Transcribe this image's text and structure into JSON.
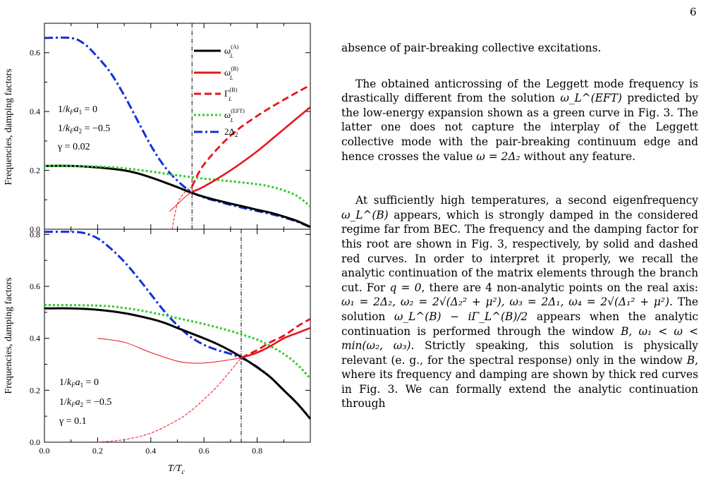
{
  "page": {
    "number": "6"
  },
  "chart_data": [
    {
      "type": "line",
      "panel": "top",
      "xlabel": "",
      "ylabel": "Frequencies, damping factors",
      "xlim": [
        0,
        1.0
      ],
      "ylim": [
        0,
        0.7
      ],
      "yticks": [
        "0.0",
        "0.2",
        "0.4",
        "0.6"
      ],
      "yticks_values": [
        0,
        0.2,
        0.4,
        0.6
      ],
      "vline_x": 0.555,
      "params": [
        "1/kFa1 = 0",
        "1/kFa2 = −0.5",
        "γ = 0.02"
      ],
      "legend": {
        "position": "top-right",
        "entries": [
          {
            "label": "ω_L^(A)",
            "color": "#000000",
            "style": "solid"
          },
          {
            "label": "ω_L^(B)",
            "color": "#e8141c",
            "style": "solid"
          },
          {
            "label": "Γ_L^(B)",
            "color": "#e8141c",
            "style": "dashed"
          },
          {
            "label": "ω_L^(EFT)",
            "color": "#2ecc2e",
            "style": "dotted"
          },
          {
            "label": "2Δ2",
            "color": "#1030d8",
            "style": "dashdot"
          }
        ]
      },
      "series": [
        {
          "name": "2Δ2",
          "color": "#1030d8",
          "dash": "dashdot",
          "width": 3,
          "x": [
            0,
            0.1,
            0.15,
            0.2,
            0.25,
            0.3,
            0.35,
            0.4,
            0.45,
            0.5,
            0.55,
            0.6,
            0.65,
            0.7,
            0.75,
            0.8,
            0.85,
            0.9,
            0.95,
            1.0
          ],
          "y": [
            0.65,
            0.65,
            0.63,
            0.585,
            0.53,
            0.455,
            0.37,
            0.285,
            0.215,
            0.165,
            0.128,
            0.108,
            0.095,
            0.083,
            0.072,
            0.062,
            0.052,
            0.04,
            0.026,
            0.007
          ]
        },
        {
          "name": "ω_L^(A)",
          "color": "#000000",
          "dash": "solid",
          "width": 3,
          "x": [
            0,
            0.1,
            0.2,
            0.3,
            0.35,
            0.4,
            0.45,
            0.5,
            0.55,
            0.6,
            0.65,
            0.7,
            0.75,
            0.8,
            0.85,
            0.9,
            0.95,
            1.0
          ],
          "y": [
            0.215,
            0.215,
            0.21,
            0.2,
            0.19,
            0.176,
            0.16,
            0.143,
            0.125,
            0.11,
            0.098,
            0.087,
            0.077,
            0.066,
            0.056,
            0.043,
            0.028,
            0.008
          ]
        },
        {
          "name": "ω_L^(EFT)",
          "color": "#2ecc2e",
          "dash": "dotted",
          "width": 3,
          "x": [
            0,
            0.2,
            0.3,
            0.4,
            0.5,
            0.6,
            0.7,
            0.8,
            0.85,
            0.9,
            0.95,
            1.0
          ],
          "y": [
            0.215,
            0.213,
            0.207,
            0.196,
            0.183,
            0.172,
            0.163,
            0.153,
            0.145,
            0.132,
            0.113,
            0.078
          ]
        },
        {
          "name": "ω_L^(B)",
          "color": "#e8141c",
          "dash": "solid",
          "width": 2.6,
          "x": [
            0.555,
            0.6,
            0.7,
            0.8,
            0.9,
            1.0
          ],
          "y": [
            0.127,
            0.145,
            0.2,
            0.265,
            0.34,
            0.415
          ]
        },
        {
          "name": "Γ_L^(B)",
          "color": "#e8141c",
          "dash": "dashed",
          "width": 2.8,
          "x": [
            0.555,
            0.6,
            0.7,
            0.8,
            0.9,
            1.0
          ],
          "y": [
            0.145,
            0.22,
            0.318,
            0.385,
            0.44,
            0.49
          ]
        },
        {
          "name": "ω_L^(B) continuation",
          "color": "#e8141c",
          "dash": "solid",
          "width": 1,
          "x": [
            0.47,
            0.5,
            0.53,
            0.555
          ],
          "y": [
            0.06,
            0.085,
            0.11,
            0.127
          ]
        },
        {
          "name": "Γ_L^(B) continuation",
          "color": "#e8141c",
          "dash": "dashed",
          "width": 1,
          "x": [
            0.48,
            0.5,
            0.53,
            0.555
          ],
          "y": [
            0.0,
            0.085,
            0.128,
            0.145
          ]
        }
      ]
    },
    {
      "type": "line",
      "panel": "bottom",
      "xlabel": "T/Tc",
      "ylabel": "Frequencies, damping factors",
      "xlim": [
        0,
        1.0
      ],
      "ylim": [
        0,
        0.82
      ],
      "xticks": [
        "0.0",
        "0.2",
        "0.4",
        "0.6",
        "0.8"
      ],
      "xticks_values": [
        0,
        0.2,
        0.4,
        0.6,
        0.8
      ],
      "yticks": [
        "0.0",
        "0.2",
        "0.4",
        "0.6",
        "0.8"
      ],
      "yticks_values": [
        0,
        0.2,
        0.4,
        0.6,
        0.8
      ],
      "vline_x": 0.74,
      "params": [
        "1/kFa1 = 0",
        "1/kFa2 = −0.5",
        "γ = 0.1"
      ],
      "series": [
        {
          "name": "2Δ2",
          "color": "#1030d8",
          "dash": "dashdot",
          "width": 3,
          "x": [
            0,
            0.1,
            0.15,
            0.2,
            0.25,
            0.3,
            0.35,
            0.4,
            0.45,
            0.5,
            0.55,
            0.6,
            0.65,
            0.7,
            0.75,
            0.8,
            0.85,
            0.9,
            0.95,
            1.0
          ],
          "y": [
            0.81,
            0.81,
            0.805,
            0.785,
            0.745,
            0.695,
            0.635,
            0.57,
            0.505,
            0.45,
            0.405,
            0.375,
            0.355,
            0.34,
            0.32,
            0.29,
            0.25,
            0.2,
            0.15,
            0.09
          ]
        },
        {
          "name": "ω_L^(A)",
          "color": "#000000",
          "dash": "solid",
          "width": 3,
          "x": [
            0,
            0.1,
            0.2,
            0.3,
            0.4,
            0.45,
            0.5,
            0.55,
            0.6,
            0.65,
            0.7,
            0.75,
            0.8,
            0.85,
            0.9,
            0.95,
            1.0
          ],
          "y": [
            0.515,
            0.515,
            0.51,
            0.497,
            0.475,
            0.46,
            0.44,
            0.42,
            0.4,
            0.378,
            0.352,
            0.322,
            0.288,
            0.25,
            0.2,
            0.15,
            0.09
          ]
        },
        {
          "name": "ω_L^(EFT)",
          "color": "#2ecc2e",
          "dash": "dotted",
          "width": 3,
          "x": [
            0,
            0.2,
            0.3,
            0.4,
            0.5,
            0.6,
            0.7,
            0.8,
            0.85,
            0.9,
            0.95,
            1.0
          ],
          "y": [
            0.528,
            0.526,
            0.517,
            0.5,
            0.478,
            0.455,
            0.428,
            0.395,
            0.37,
            0.34,
            0.3,
            0.245
          ]
        },
        {
          "name": "ω_L^(B)",
          "color": "#e8141c",
          "dash": "solid",
          "width": 2.6,
          "x": [
            0.74,
            0.8,
            0.85,
            0.9,
            0.95,
            1.0
          ],
          "y": [
            0.325,
            0.345,
            0.37,
            0.4,
            0.42,
            0.44
          ]
        },
        {
          "name": "Γ_L^(B)",
          "color": "#e8141c",
          "dash": "dashed",
          "width": 2.8,
          "x": [
            0.74,
            0.8,
            0.85,
            0.9,
            0.95,
            1.0
          ],
          "y": [
            0.325,
            0.355,
            0.385,
            0.41,
            0.445,
            0.475
          ]
        },
        {
          "name": "ω_L^(B) continuation",
          "color": "#e8141c",
          "dash": "solid",
          "width": 1,
          "x": [
            0.2,
            0.3,
            0.4,
            0.5,
            0.55,
            0.6,
            0.65,
            0.7,
            0.74
          ],
          "y": [
            0.4,
            0.385,
            0.345,
            0.312,
            0.305,
            0.305,
            0.31,
            0.318,
            0.325
          ]
        },
        {
          "name": "Γ_L^(B) continuation",
          "color": "#e8141c",
          "dash": "dashed",
          "width": 1,
          "x": [
            0.2,
            0.3,
            0.4,
            0.5,
            0.55,
            0.6,
            0.65,
            0.7,
            0.74
          ],
          "y": [
            0.0,
            0.01,
            0.035,
            0.085,
            0.12,
            0.165,
            0.215,
            0.275,
            0.325
          ]
        }
      ]
    }
  ],
  "text": {
    "p1": "absence of pair-breaking collective excitations.",
    "p2a": "The obtained anticrossing of the Leggett mode frequency is drastically different from the solution ",
    "p2_math": "ω_L^(EFT)",
    "p2b": " predicted by the low-energy expansion shown as a green curve in Fig. 3. The latter one does not capture the interplay of the Leggett collective mode with the pair-breaking continuum edge and hence crosses the value ",
    "p2_math2": "ω = 2Δ₂",
    "p2c": " without any feature.",
    "p3a": "At sufficiently high temperatures, a second eigenfrequency ",
    "p3_math1": "ω_L^(B)",
    "p3b": " appears, which is strongly damped in the considered regime far from BEC. The frequency and the damping factor for this root are shown in Fig. 3, respectively, by solid and dashed red curves. In order to interpret it properly, we recall the analytic continuation of the matrix elements through the branch cut. For ",
    "p3_math2": "q = 0",
    "p3c": ", there are 4 non-analytic points on the real axis: ",
    "p3_math3": "ω₁ = 2Δ₂, ω₂ = 2√(Δ₂² + μ²), ω₃ = 2Δ₁, ω₄ = 2√(Δ₁² + μ²)",
    "p3d": ". The solution ",
    "p3_math4": "ω_L^(B) − iΓ_L^(B)/2",
    "p3e": " appears when the analytic continuation is performed through the window ",
    "p3_math5": "B, ω₁ < ω < min(ω₂, ω₃)",
    "p3f": ". Strictly speaking, this solution is physically relevant (e. g., for the spectral response) only in the window ",
    "p3_math6": "B",
    "p3g": ", where its frequency and damping are shown by thick red curves in Fig. 3. We can formally extend the analytic continuation through"
  }
}
